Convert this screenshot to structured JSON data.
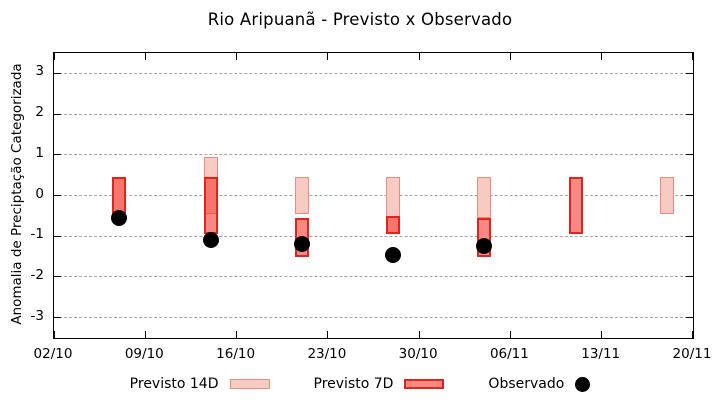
{
  "chart_data": {
    "type": "bar",
    "subtype": "range-bars-with-scatter",
    "title": "Rio Aripuanã - Previsto x Observado",
    "ylabel": "Anomalia de Preciptação Categorizada",
    "xlabel": "",
    "ylim": [
      -3.5,
      3.5
    ],
    "yticks": [
      3,
      2,
      1,
      0,
      -1,
      -2,
      -3
    ],
    "xlim_days": [
      0,
      49
    ],
    "xticks": [
      {
        "day": 0,
        "label": "02/10"
      },
      {
        "day": 7,
        "label": "09/10"
      },
      {
        "day": 14,
        "label": "16/10"
      },
      {
        "day": 21,
        "label": "23/10"
      },
      {
        "day": 28,
        "label": "30/10"
      },
      {
        "day": 35,
        "label": "06/11"
      },
      {
        "day": 42,
        "label": "13/11"
      },
      {
        "day": 49,
        "label": "20/11"
      }
    ],
    "grid": {
      "horizontal": true,
      "style": "dashed",
      "color": "#a6a6a6"
    },
    "axis_color": "#000000",
    "legend_position": "bottom-center",
    "series": [
      {
        "name": "Previsto 14D",
        "type": "range-bar",
        "fill": "#f8cbc2",
        "border": "#ef8a7e",
        "border_px": 1.5,
        "points": [
          {
            "date": "07/10",
            "day": 5,
            "high": 0.45,
            "low": -0.45
          },
          {
            "date": "14/10",
            "day": 12,
            "high": 0.95,
            "low": -0.45
          },
          {
            "date": "21/10",
            "day": 19,
            "high": 0.45,
            "low": -0.45
          },
          {
            "date": "28/10",
            "day": 26,
            "high": 0.45,
            "low": -0.95
          },
          {
            "date": "04/11",
            "day": 33,
            "high": 0.45,
            "low": -0.55
          },
          {
            "date": "18/11",
            "day": 47,
            "high": 0.45,
            "low": -0.45
          }
        ]
      },
      {
        "name": "Previsto 7D",
        "type": "range-bar",
        "fill": "rgba(243,58,48,0.6)",
        "border": "#e3241c",
        "border_px": 2,
        "points": [
          {
            "date": "07/10",
            "day": 5,
            "high": 0.45,
            "low": -0.45
          },
          {
            "date": "14/10",
            "day": 12,
            "high": 0.45,
            "low": -0.95
          },
          {
            "date": "21/10",
            "day": 19,
            "high": -0.55,
            "low": -1.5
          },
          {
            "date": "28/10",
            "day": 26,
            "high": -0.5,
            "low": -0.95
          },
          {
            "date": "04/11",
            "day": 33,
            "high": -0.55,
            "low": -1.5
          },
          {
            "date": "11/11",
            "day": 40,
            "high": 0.45,
            "low": -0.95
          }
        ]
      },
      {
        "name": "Observado",
        "type": "scatter",
        "color": "#000000",
        "points": [
          {
            "date": "07/10",
            "day": 5,
            "value": -0.55
          },
          {
            "date": "14/10",
            "day": 12,
            "value": -1.1
          },
          {
            "date": "21/10",
            "day": 19,
            "value": -1.2
          },
          {
            "date": "28/10",
            "day": 26,
            "value": -1.45
          },
          {
            "date": "04/11",
            "day": 33,
            "value": -1.25
          }
        ]
      }
    ]
  }
}
